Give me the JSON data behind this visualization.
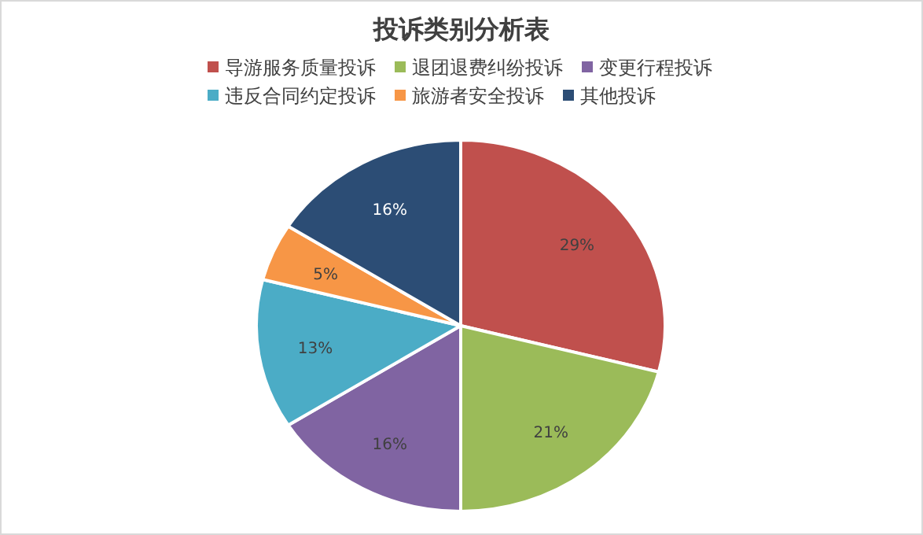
{
  "chart_data": {
    "type": "pie",
    "title": "投诉类别分析表",
    "categories": [
      "导游服务质量投诉",
      "退团退费纠纷投诉",
      "变更行程投诉",
      "违反合同约定投诉",
      "旅游者安全投诉",
      "其他投诉"
    ],
    "values": [
      29,
      21,
      16,
      13,
      5,
      16
    ],
    "value_labels": [
      "29%",
      "21%",
      "16%",
      "13%",
      "5%",
      "16%"
    ],
    "colors": [
      "#c0504d",
      "#9bbb59",
      "#8064a2",
      "#4bacc6",
      "#f79646",
      "#2c4d75"
    ],
    "legend": "top"
  }
}
